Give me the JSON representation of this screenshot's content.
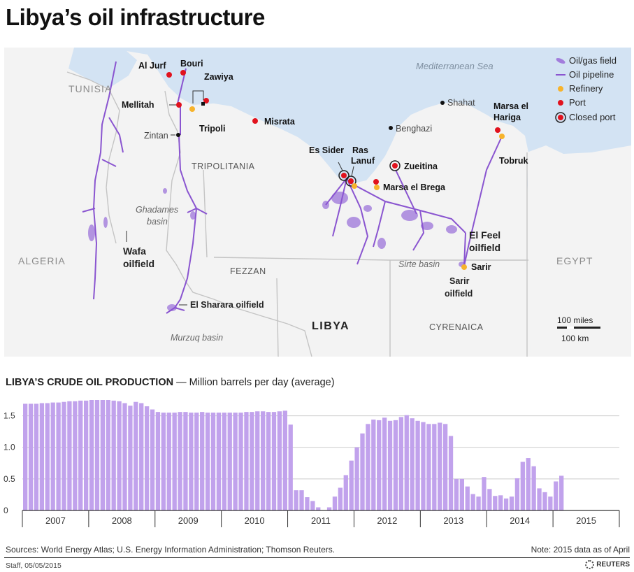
{
  "title": "Libya’s oil infrastructure",
  "map": {
    "sea_label": "Mediterranean Sea",
    "countries": {
      "tunisia": "TUNISIA",
      "algeria": "ALGERIA",
      "egypt": "EGYPT",
      "libya": "LIBYA"
    },
    "regions": {
      "tripolitania": "TRIPOLITANIA",
      "fezzan": "FEZZAN",
      "cyrenaica": "CYRENAICA"
    },
    "basins": {
      "ghadames_1": "Ghadames",
      "ghadames_2": "basin",
      "murzuq": "Murzuq basin",
      "sirte": "Sirte basin"
    },
    "fields": {
      "wafa_1": "Wafa",
      "wafa_2": "oilfield",
      "sharara": "El Sharara oilfield",
      "elfeel_1": "El Feel",
      "elfeel_2": "oilfield",
      "sarir_1": "Sarir",
      "sarir_2": "oilfield"
    },
    "places": {
      "al_jurf": "Al Jurf",
      "bouri": "Bouri",
      "zawiya": "Zawiya",
      "mellitah": "Mellitah",
      "tripoli": "Tripoli",
      "zintan": "Zintan",
      "misrata": "Misrata",
      "es_sider": "Es Sider",
      "ras_lanuf_1": "Ras",
      "ras_lanuf_2": "Lanuf",
      "zueitina": "Zueitina",
      "marsa_brega": "Marsa el Brega",
      "benghazi": "Benghazi",
      "shahat": "Shahat",
      "marsa_hariga_1": "Marsa el",
      "marsa_hariga_2": "Hariga",
      "tobruk": "Tobruk",
      "sarir": "Sarir"
    },
    "legend": [
      "Oil/gas field",
      "Oil pipeline",
      "Refinery",
      "Port",
      "Closed port"
    ],
    "scale": {
      "miles": "100 miles",
      "km": "100 km"
    },
    "colors": {
      "sea": "#d3e3f3",
      "land": "#f3f3f3",
      "border": "#c4c4c4",
      "pipeline": "#8a55d0",
      "field": "#a27ddc",
      "port": "#e1121d",
      "refinery": "#f7b32b",
      "city": "#111111"
    }
  },
  "chart_header": {
    "title": "LIBYA’S CRUDE OIL PRODUCTION",
    "subtitle": "— Million barrels per day (average)"
  },
  "chart_data": {
    "type": "bar",
    "title": "LIBYA’S CRUDE OIL PRODUCTION",
    "ylabel": "Million barrels per day (average)",
    "xlabel": "",
    "ylim": [
      0,
      1.75
    ],
    "yticks": [
      0,
      0.5,
      1.0,
      1.5
    ],
    "ytick_labels": [
      "0",
      "0.5",
      "1.0",
      "1.5"
    ],
    "years": [
      "2007",
      "2008",
      "2009",
      "2010",
      "2011",
      "2012",
      "2013",
      "2014",
      "2015"
    ],
    "bar_color": "#c1a2ec",
    "values": [
      1.69,
      1.69,
      1.69,
      1.7,
      1.7,
      1.71,
      1.71,
      1.72,
      1.73,
      1.73,
      1.74,
      1.74,
      1.75,
      1.75,
      1.75,
      1.75,
      1.74,
      1.73,
      1.7,
      1.66,
      1.72,
      1.7,
      1.65,
      1.6,
      1.56,
      1.55,
      1.55,
      1.55,
      1.56,
      1.56,
      1.55,
      1.55,
      1.56,
      1.55,
      1.55,
      1.55,
      1.55,
      1.55,
      1.55,
      1.55,
      1.56,
      1.56,
      1.57,
      1.57,
      1.56,
      1.56,
      1.57,
      1.58,
      1.36,
      0.32,
      0.32,
      0.21,
      0.15,
      0.05,
      0.0,
      0.05,
      0.22,
      0.36,
      0.56,
      0.79,
      1.0,
      1.22,
      1.37,
      1.44,
      1.43,
      1.47,
      1.42,
      1.43,
      1.48,
      1.51,
      1.46,
      1.42,
      1.4,
      1.37,
      1.37,
      1.39,
      1.37,
      1.18,
      0.5,
      0.5,
      0.38,
      0.26,
      0.22,
      0.53,
      0.34,
      0.23,
      0.24,
      0.19,
      0.22,
      0.51,
      0.77,
      0.83,
      0.7,
      0.35,
      0.29,
      0.22,
      0.46,
      0.55
    ]
  },
  "footer": {
    "sources": "Sources: World Energy Atlas; U.S. Energy Information Administration; Thomson Reuters.",
    "note": "Note: 2015 data as of April",
    "credit": "Staff, 05/05/2015",
    "brand": "REUTERS"
  }
}
